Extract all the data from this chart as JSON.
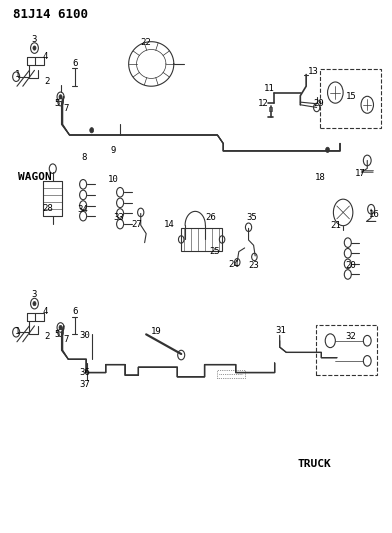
{
  "title": "81J14 6100",
  "bg_color": "#ffffff",
  "line_color": "#333333",
  "text_color": "#000000",
  "title_fontsize": 10,
  "label_fontsize": 7,
  "wagon_label": "WAGON",
  "truck_label": "TRUCK"
}
